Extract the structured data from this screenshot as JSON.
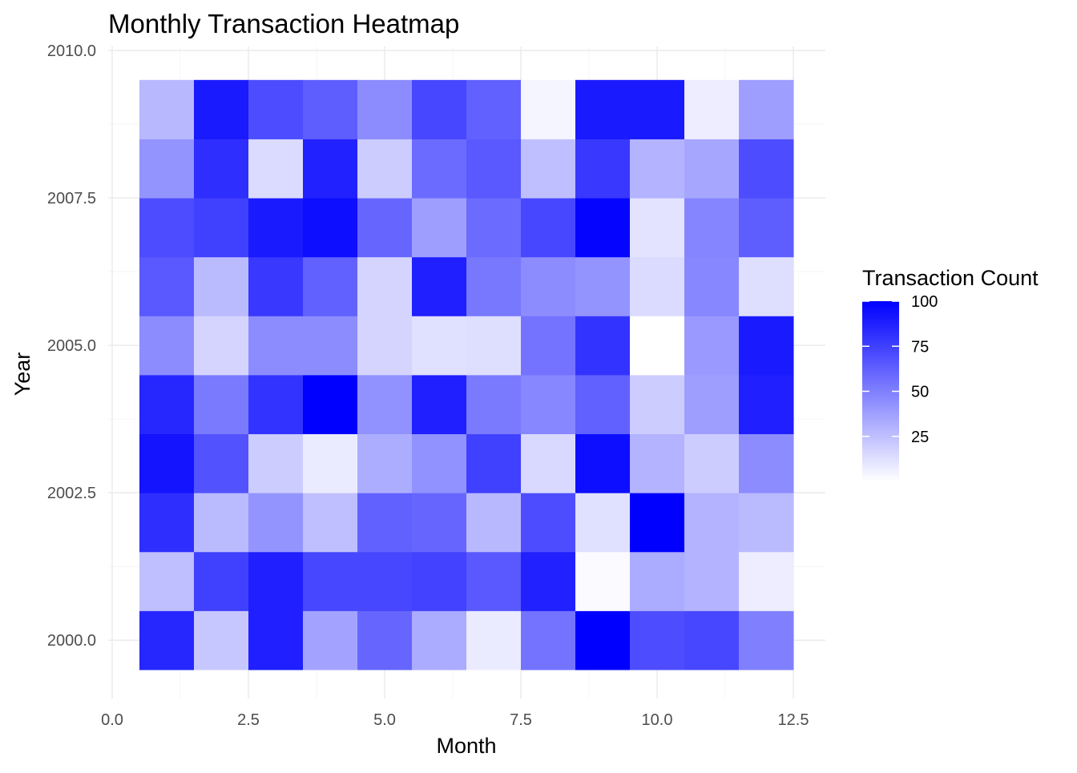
{
  "chart_data": {
    "type": "heatmap",
    "title": "Monthly Transaction Heatmap",
    "xlabel": "Month",
    "ylabel": "Year",
    "x": [
      1,
      2,
      3,
      4,
      5,
      6,
      7,
      8,
      9,
      10,
      11,
      12
    ],
    "y": [
      2000,
      2001,
      2002,
      2003,
      2004,
      2005,
      2006,
      2007,
      2008,
      2009
    ],
    "xlim": [
      0,
      12.5
    ],
    "ylim": [
      1999.5,
      2010
    ],
    "x_ticks": [
      "0.0",
      "2.5",
      "5.0",
      "7.5",
      "10.0",
      "12.5"
    ],
    "x_tick_values": [
      0,
      2.5,
      5,
      7.5,
      10,
      12.5
    ],
    "y_ticks": [
      "2000.0",
      "2002.5",
      "2005.0",
      "2007.5",
      "2010.0"
    ],
    "y_tick_values": [
      2000,
      2002.5,
      2005,
      2007.5,
      2010
    ],
    "values": [
      [
        85,
        22,
        88,
        36,
        60,
        33,
        8,
        55,
        100,
        70,
        72,
        50
      ],
      [
        25,
        75,
        88,
        72,
        72,
        74,
        65,
        87,
        2,
        33,
        30,
        7
      ],
      [
        82,
        27,
        42,
        25,
        62,
        60,
        28,
        70,
        12,
        100,
        30,
        27
      ],
      [
        92,
        68,
        20,
        8,
        32,
        43,
        75,
        15,
        95,
        30,
        20,
        45
      ],
      [
        85,
        52,
        80,
        100,
        43,
        88,
        52,
        47,
        62,
        20,
        38,
        88
      ],
      [
        45,
        17,
        45,
        45,
        17,
        12,
        13,
        55,
        80,
        0,
        40,
        90
      ],
      [
        65,
        27,
        78,
        62,
        17,
        88,
        53,
        45,
        42,
        14,
        47,
        13
      ],
      [
        70,
        75,
        90,
        95,
        60,
        38,
        58,
        72,
        98,
        11,
        48,
        63
      ],
      [
        42,
        82,
        14,
        87,
        20,
        58,
        65,
        25,
        78,
        30,
        35,
        70
      ],
      [
        28,
        90,
        70,
        63,
        45,
        72,
        62,
        4,
        90,
        90,
        7,
        38
      ]
    ],
    "legend": {
      "title": "Transaction Count",
      "labels": [
        "100",
        "75",
        "50",
        "25"
      ],
      "label_values": [
        100,
        75,
        50,
        25
      ],
      "range": [
        0,
        100
      ],
      "low_color": "#ffffff",
      "high_color": "#0000ff",
      "placement": "right"
    },
    "grid": true
  }
}
